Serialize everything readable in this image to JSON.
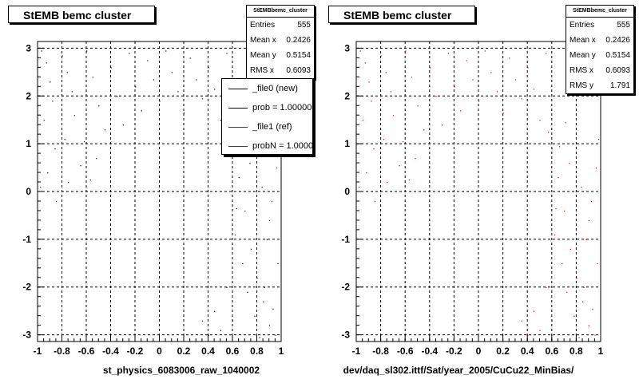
{
  "colors": {
    "file0": "#000000",
    "file1": "#cc0000"
  },
  "legend": {
    "items": [
      {
        "label": "_file0 (new)",
        "color": "#000000"
      },
      {
        "label": "prob = 1.000000",
        "color": "#000000"
      },
      {
        "label": "_file1 (ref)",
        "color": "#cc0000"
      },
      {
        "label": "probN = 1.000000",
        "color": "#cc0000"
      }
    ]
  },
  "chart_data": [
    {
      "type": "scatter",
      "title": "StEMB bemc cluster",
      "xlabel": "st_physics_6083006_raw_1040002",
      "ylabel": "",
      "xlim": [
        -1,
        1
      ],
      "ylim": [
        -3.14,
        3.14
      ],
      "grid": true,
      "color": "#000000",
      "xticks": [
        "-1",
        "-0.8",
        "-0.6",
        "-0.4",
        "-0.2",
        "0",
        "0.2",
        "0.4",
        "0.6",
        "0.8",
        "1"
      ],
      "yticks": [
        "-3",
        "-2",
        "-1",
        "0",
        "1",
        "2",
        "3"
      ],
      "stats": {
        "name": "StEMBbemc_cluster",
        "rows": [
          {
            "label": "Entries",
            "value": "555"
          },
          {
            "label": "Mean x",
            "value": "0.2426"
          },
          {
            "label": "Mean y",
            "value": "0.5154"
          },
          {
            "label": "RMS x",
            "value": "0.6093"
          }
        ]
      },
      "points": [
        [
          -0.97,
          2.95
        ],
        [
          -0.93,
          2.7
        ],
        [
          -0.9,
          2.3
        ],
        [
          -0.88,
          1.9
        ],
        [
          -0.95,
          1.5
        ],
        [
          -0.86,
          0.9
        ],
        [
          -0.92,
          0.4
        ],
        [
          -0.8,
          2.85
        ],
        [
          -0.76,
          2.5
        ],
        [
          -0.72,
          2.1
        ],
        [
          -0.7,
          1.6
        ],
        [
          -0.78,
          1.1
        ],
        [
          -0.65,
          0.55
        ],
        [
          -0.6,
          2.95
        ],
        [
          -0.55,
          2.4
        ],
        [
          -0.5,
          1.8
        ],
        [
          -0.45,
          1.3
        ],
        [
          -0.52,
          0.7
        ],
        [
          -0.4,
          2.6
        ],
        [
          -0.35,
          2.0
        ],
        [
          -0.3,
          1.4
        ],
        [
          -0.25,
          2.9
        ],
        [
          -0.2,
          2.2
        ],
        [
          -0.15,
          1.7
        ],
        [
          -0.1,
          2.75
        ],
        [
          -0.05,
          2.35
        ],
        [
          0.0,
          1.9
        ],
        [
          0.05,
          2.95
        ],
        [
          0.1,
          2.5
        ],
        [
          0.15,
          2.1
        ],
        [
          0.2,
          1.65
        ],
        [
          0.25,
          2.8
        ],
        [
          0.3,
          2.35
        ],
        [
          0.35,
          1.95
        ],
        [
          0.4,
          2.6
        ],
        [
          0.45,
          2.15
        ],
        [
          0.5,
          1.5
        ],
        [
          0.55,
          2.9
        ],
        [
          0.6,
          0.9
        ],
        [
          0.65,
          0.3
        ],
        [
          0.7,
          -0.4
        ],
        [
          0.75,
          -1.2
        ],
        [
          0.8,
          -1.8
        ],
        [
          0.85,
          -2.3
        ],
        [
          0.9,
          -2.8
        ],
        [
          0.95,
          -3.0
        ],
        [
          0.62,
          -0.9
        ],
        [
          0.68,
          -1.5
        ],
        [
          0.72,
          -2.1
        ],
        [
          0.78,
          -2.6
        ],
        [
          0.82,
          -3.05
        ],
        [
          0.88,
          -1.0
        ],
        [
          0.92,
          -0.2
        ],
        [
          0.96,
          0.5
        ],
        [
          0.98,
          1.1
        ],
        [
          0.5,
          -2.9
        ],
        [
          0.45,
          -2.5
        ],
        [
          0.55,
          -2.0
        ],
        [
          0.6,
          -2.7
        ],
        [
          0.4,
          -3.0
        ],
        [
          0.35,
          -2.7
        ],
        [
          0.66,
          0.95
        ],
        [
          0.74,
          0.6
        ],
        [
          0.84,
          0.1
        ],
        [
          0.9,
          -0.6
        ],
        [
          0.97,
          -1.5
        ],
        [
          -0.98,
          0.1
        ],
        [
          -0.85,
          -0.2
        ],
        [
          -0.75,
          0.2
        ],
        [
          -0.62,
          1.05
        ],
        [
          -0.57,
          0.25
        ],
        [
          0.57,
          1.25
        ],
        [
          0.63,
          -0.35
        ],
        [
          0.71,
          1.45
        ],
        [
          0.86,
          -2.0
        ],
        [
          0.93,
          -2.45
        ]
      ]
    },
    {
      "type": "scatter",
      "title": "StEMB bemc cluster",
      "xlabel": "dev/daq_sl302.ittf/Sat/year_2005/CuCu22_MinBias/",
      "ylabel": "",
      "xlim": [
        -1,
        1
      ],
      "ylim": [
        -3.14,
        3.14
      ],
      "grid": true,
      "color": "#cc0000",
      "xticks": [
        "-1",
        "-0.8",
        "-0.6",
        "-0.4",
        "-0.2",
        "0",
        "0.2",
        "0.4",
        "0.6",
        "0.8",
        "1"
      ],
      "yticks": [
        "-3",
        "-2",
        "-1",
        "0",
        "1",
        "2",
        "3"
      ],
      "stats": {
        "name": "StEMBbemc_cluster",
        "rows": [
          {
            "label": "Entries",
            "value": "555"
          },
          {
            "label": "Mean x",
            "value": "0.2426"
          },
          {
            "label": "Mean y",
            "value": "0.5154"
          },
          {
            "label": "RMS x",
            "value": "0.6093"
          },
          {
            "label": "RMS y",
            "value": "1.791"
          }
        ]
      },
      "points": [
        [
          -0.97,
          2.95
        ],
        [
          -0.93,
          2.7
        ],
        [
          -0.9,
          2.3
        ],
        [
          -0.88,
          1.9
        ],
        [
          -0.95,
          1.5
        ],
        [
          -0.86,
          0.9
        ],
        [
          -0.92,
          0.4
        ],
        [
          -0.8,
          2.85
        ],
        [
          -0.76,
          2.5
        ],
        [
          -0.72,
          2.1
        ],
        [
          -0.7,
          1.6
        ],
        [
          -0.78,
          1.1
        ],
        [
          -0.65,
          0.55
        ],
        [
          -0.6,
          2.95
        ],
        [
          -0.55,
          2.4
        ],
        [
          -0.5,
          1.8
        ],
        [
          -0.45,
          1.3
        ],
        [
          -0.52,
          0.7
        ],
        [
          -0.4,
          2.6
        ],
        [
          -0.35,
          2.0
        ],
        [
          -0.3,
          1.4
        ],
        [
          -0.25,
          2.9
        ],
        [
          -0.2,
          2.2
        ],
        [
          -0.15,
          1.7
        ],
        [
          -0.1,
          2.75
        ],
        [
          -0.05,
          2.35
        ],
        [
          0.0,
          1.9
        ],
        [
          0.05,
          2.95
        ],
        [
          0.1,
          2.5
        ],
        [
          0.15,
          2.1
        ],
        [
          0.2,
          1.65
        ],
        [
          0.25,
          2.8
        ],
        [
          0.3,
          2.35
        ],
        [
          0.35,
          1.95
        ],
        [
          0.4,
          2.6
        ],
        [
          0.45,
          2.15
        ],
        [
          0.5,
          1.5
        ],
        [
          0.55,
          2.9
        ],
        [
          0.6,
          0.9
        ],
        [
          0.65,
          0.3
        ],
        [
          0.7,
          -0.4
        ],
        [
          0.75,
          -1.2
        ],
        [
          0.8,
          -1.8
        ],
        [
          0.85,
          -2.3
        ],
        [
          0.9,
          -2.8
        ],
        [
          0.95,
          -3.0
        ],
        [
          0.62,
          -0.9
        ],
        [
          0.68,
          -1.5
        ],
        [
          0.72,
          -2.1
        ],
        [
          0.78,
          -2.6
        ],
        [
          0.82,
          -3.05
        ],
        [
          0.88,
          -1.0
        ],
        [
          0.92,
          -0.2
        ],
        [
          0.96,
          0.5
        ],
        [
          0.98,
          1.1
        ],
        [
          0.5,
          -2.9
        ],
        [
          0.45,
          -2.5
        ],
        [
          0.55,
          -2.0
        ],
        [
          0.6,
          -2.7
        ],
        [
          0.4,
          -3.0
        ],
        [
          0.35,
          -2.7
        ],
        [
          0.66,
          0.95
        ],
        [
          0.74,
          0.6
        ],
        [
          0.84,
          0.1
        ],
        [
          0.9,
          -0.6
        ],
        [
          0.97,
          -1.5
        ],
        [
          -0.98,
          0.1
        ],
        [
          -0.85,
          -0.2
        ],
        [
          -0.75,
          0.2
        ],
        [
          -0.62,
          1.05
        ],
        [
          -0.57,
          0.25
        ],
        [
          0.57,
          1.25
        ],
        [
          0.63,
          -0.35
        ],
        [
          0.71,
          1.45
        ],
        [
          0.86,
          -2.0
        ],
        [
          0.93,
          -2.45
        ]
      ]
    }
  ]
}
